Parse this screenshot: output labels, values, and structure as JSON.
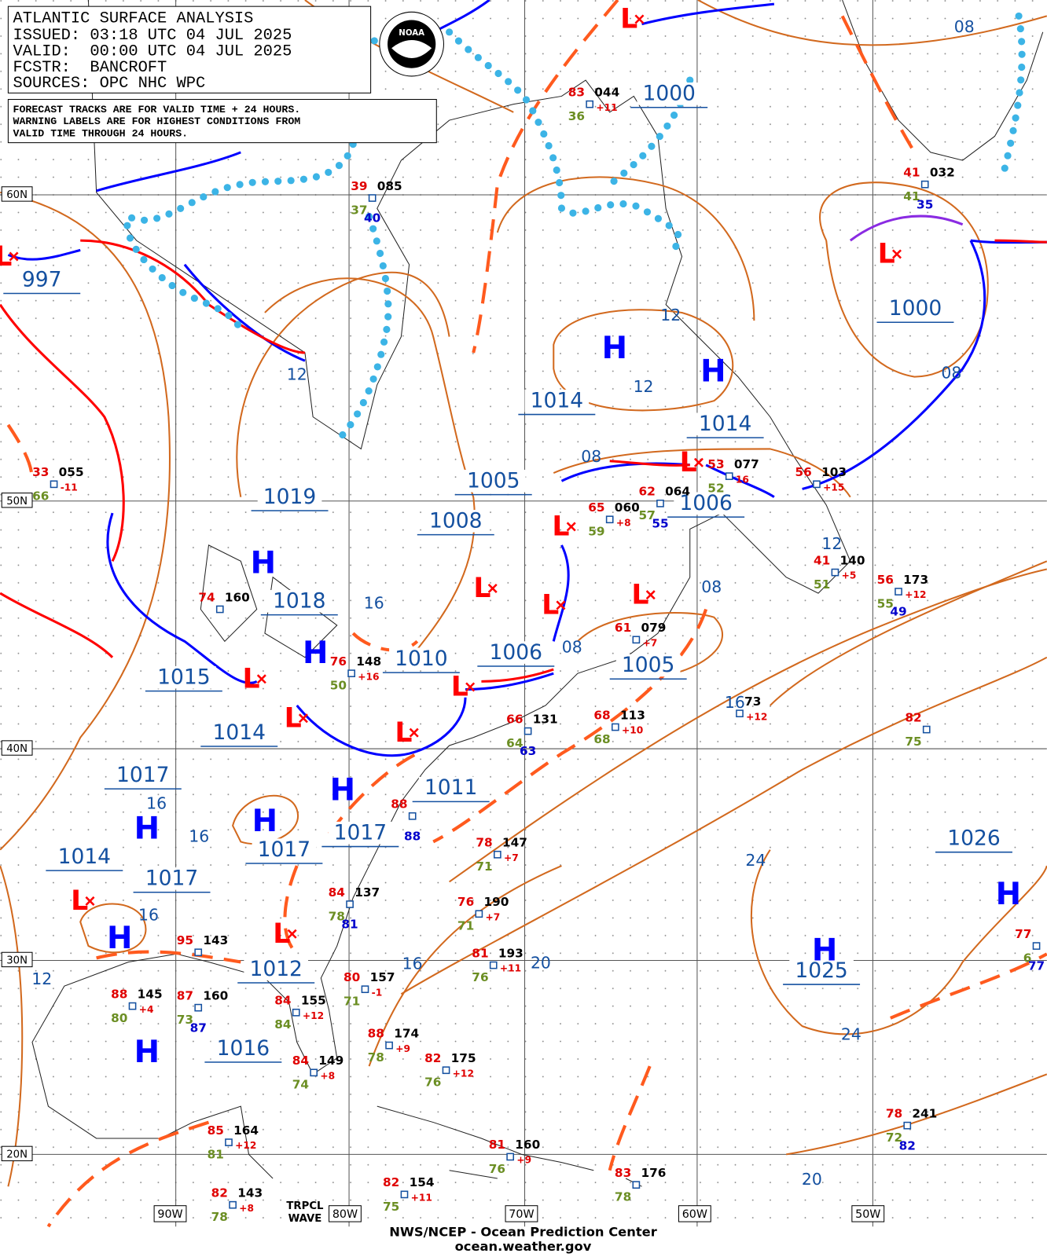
{
  "header": {
    "title": "ATLANTIC SURFACE ANALYSIS",
    "issued": "ISSUED: 03:18 UTC 04 JUL 2025",
    "valid": "VALID:  00:00 UTC 04 JUL 2025",
    "fcstr": "FCSTR:  BANCROFT",
    "sources": "SOURCES: OPC NHC WPC"
  },
  "note": [
    "FORECAST TRACKS ARE FOR VALID TIME + 24 HOURS.",
    "WARNING LABELS ARE FOR HIGHEST CONDITIONS FROM",
    "VALID TIME THROUGH 24 HOURS."
  ],
  "logo": "NOAA",
  "latitude_labels": [
    "60N",
    "50N",
    "40N",
    "30N",
    "20N"
  ],
  "longitude_labels": [
    "90W",
    "80W",
    "70W",
    "60W",
    "50W"
  ],
  "centers": {
    "high": "H",
    "low": "L"
  },
  "pressure_labels": [
    "997",
    "1000",
    "1000",
    "1014",
    "1014",
    "1005",
    "1019",
    "1008",
    "1006",
    "1018",
    "1010",
    "1006",
    "1005",
    "1015",
    "1014",
    "1017",
    "1011",
    "1017",
    "1017",
    "1014",
    "1017",
    "1012",
    "1016",
    "1026",
    "1025"
  ],
  "isobar_labels": [
    "08",
    "12",
    "12",
    "12",
    "08",
    "08",
    "16",
    "08",
    "08",
    "12",
    "16",
    "16",
    "16",
    "12",
    "16",
    "20",
    "24",
    "24",
    "20",
    "16"
  ],
  "stations": [
    {
      "temp": "33",
      "pressure": "055",
      "tendency": "-11",
      "dew": "66"
    },
    {
      "temp": "83",
      "pressure": "044",
      "tendency": "+11",
      "dew": "36"
    },
    {
      "temp": "39",
      "pressure": "085",
      "dew": "37",
      "other": "40"
    },
    {
      "temp": "41",
      "pressure": "032",
      "dew": "41",
      "other": "35"
    },
    {
      "temp": "74",
      "pressure": "160"
    },
    {
      "temp": "76",
      "pressure": "148",
      "tendency": "+16",
      "dew": "50"
    },
    {
      "temp": "65",
      "pressure": "060",
      "tendency": "+8",
      "dew": "59"
    },
    {
      "temp": "62",
      "pressure": "064",
      "dew": "57",
      "other": "55"
    },
    {
      "temp": "53",
      "pressure": "077",
      "tendency": "16",
      "dew": "52"
    },
    {
      "temp": "56",
      "pressure": "103",
      "tendency": "+15"
    },
    {
      "temp": "41",
      "pressure": "140",
      "tendency": "+5",
      "dew": "51"
    },
    {
      "temp": "56",
      "pressure": "173",
      "tendency": "+12",
      "dew": "55",
      "other": "49"
    },
    {
      "temp": "61",
      "pressure": "079",
      "tendency": "+7"
    },
    {
      "temp": "68",
      "pressure": "113",
      "tendency": "+10",
      "dew": "68"
    },
    {
      "temp": "66",
      "pressure": "131",
      "dew": "64",
      "other": "63"
    },
    {
      "temp": "82",
      "dew": "75"
    },
    {
      "pressure": "73",
      "tendency": "+12"
    },
    {
      "temp": "88",
      "other": "88"
    },
    {
      "temp": "78",
      "pressure": "147",
      "tendency": "+7",
      "dew": "71"
    },
    {
      "temp": "84",
      "pressure": "137",
      "dew": "78",
      "other": "81"
    },
    {
      "temp": "76",
      "pressure": "190",
      "tendency": "+7",
      "dew": "71"
    },
    {
      "temp": "95",
      "pressure": "143"
    },
    {
      "temp": "81",
      "pressure": "193",
      "tendency": "+11",
      "dew": "76"
    },
    {
      "temp": "80",
      "pressure": "157",
      "tendency": "-1",
      "dew": "71"
    },
    {
      "temp": "88",
      "pressure": "145",
      "tendency": "+4",
      "dew": "80"
    },
    {
      "temp": "87",
      "pressure": "160",
      "dew": "73",
      "other": "87"
    },
    {
      "temp": "84",
      "pressure": "155",
      "tendency": "+12",
      "dew": "84"
    },
    {
      "temp": "88",
      "pressure": "174",
      "tendency": "+9",
      "dew": "78"
    },
    {
      "temp": "82",
      "pressure": "175",
      "tendency": "+12",
      "dew": "76"
    },
    {
      "temp": "84",
      "pressure": "149",
      "tendency": "+8",
      "dew": "74"
    },
    {
      "temp": "85",
      "pressure": "164",
      "tendency": "+12",
      "dew": "81"
    },
    {
      "temp": "81",
      "pressure": "160",
      "tendency": "+9",
      "dew": "76"
    },
    {
      "temp": "78",
      "pressure": "241",
      "dew": "72",
      "other": "82"
    },
    {
      "temp": "83",
      "pressure": "176",
      "dew": "78"
    },
    {
      "temp": "82",
      "pressure": "154",
      "tendency": "+11",
      "dew": "75"
    },
    {
      "temp": "82",
      "pressure": "143",
      "tendency": "+8",
      "dew": "78"
    },
    {
      "temp": "77",
      "dew": "6",
      "other": "77"
    }
  ],
  "wave_label": [
    "TRPCL",
    "WAVE"
  ],
  "footer": {
    "agency": "NWS/NCEP - Ocean Prediction Center",
    "url": "ocean.weather.gov"
  }
}
